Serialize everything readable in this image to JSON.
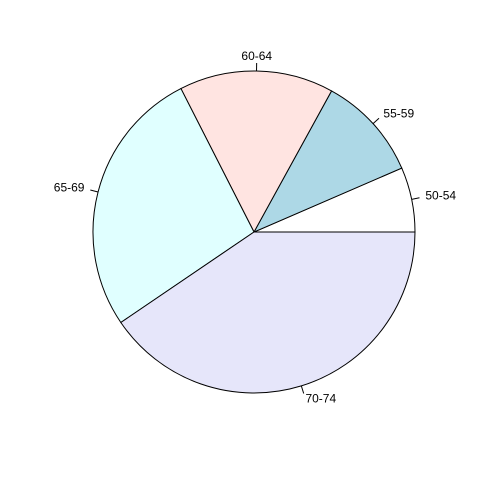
{
  "chart_data": {
    "type": "pie",
    "title": "",
    "categories": [
      "50-54",
      "55-59",
      "60-64",
      "65-69",
      "70-74"
    ],
    "values": [
      6.5,
      10.5,
      15.5,
      27,
      40.5
    ],
    "colors": [
      "#FFFFFF",
      "#ADD8E6",
      "#FFE4E1",
      "#E0FFFF",
      "#E6E6FA"
    ],
    "start_angle_deg": 0,
    "direction": "counterclockwise",
    "legend": "none",
    "labels_outside": true
  }
}
